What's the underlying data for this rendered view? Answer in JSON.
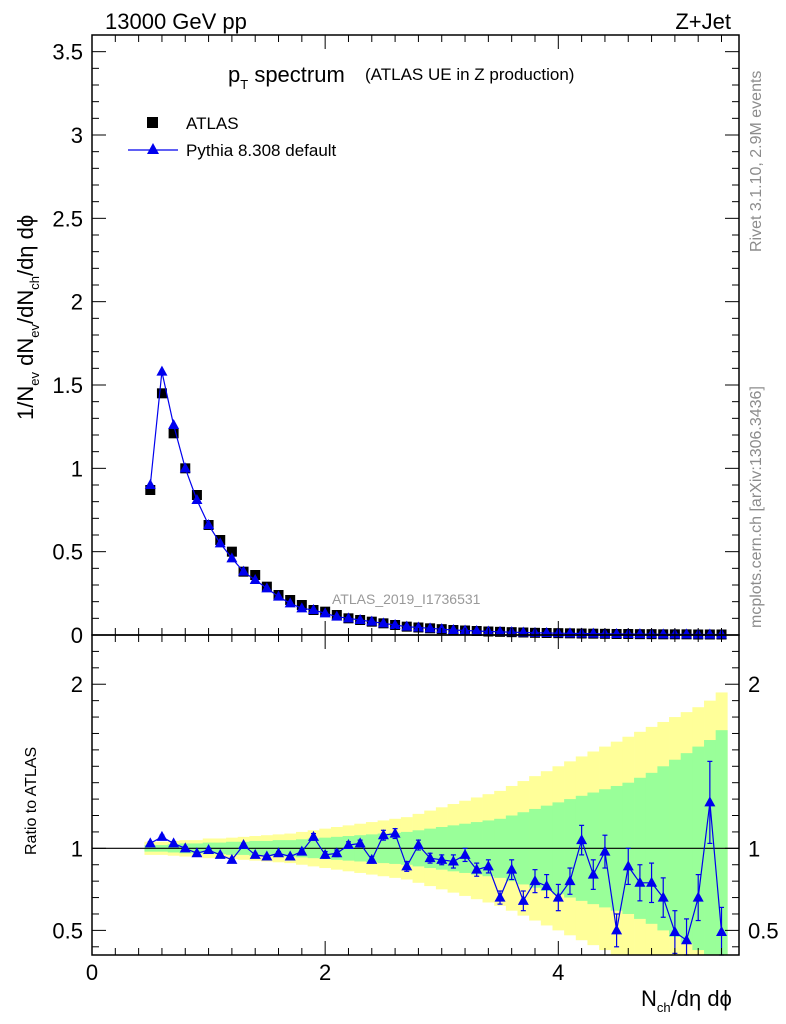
{
  "header": {
    "left": "13000 GeV pp",
    "right": "Z+Jet"
  },
  "title": {
    "main": "p",
    "sub": "T",
    "rest": " spectrum",
    "note": "(ATLAS UE in Z production)"
  },
  "analysis_id": "ATLAS_2019_I1736531",
  "side_labels": {
    "top": "Rivet 3.1.10,  2.9M events",
    "bottom": "mcplots.cern.ch [arXiv:1306.3436]"
  },
  "ylabel_main": {
    "a": "1/N",
    "a_sub": "ev",
    "b": " dN",
    "b_sub": "ev",
    "c": "/dN",
    "c_sub": "ch",
    "d": "/dη dϕ"
  },
  "ylabel_ratio": "Ratio to ATLAS",
  "xlabel": {
    "a": "N",
    "a_sub": "ch",
    "b": "/dη dϕ"
  },
  "legend": [
    {
      "name": "ATLAS",
      "marker": "square",
      "color": "#000000"
    },
    {
      "name": "Pythia 8.308 default",
      "marker": "triangle",
      "color": "#0000ee"
    }
  ],
  "colors": {
    "data": "#000000",
    "mc": "#0000ee",
    "band_inner": "#99ff99",
    "band_outer": "#ffff99"
  },
  "chart_data": {
    "type": "scatter",
    "xlim": [
      0,
      5.55
    ],
    "ylim_main": [
      0,
      3.6
    ],
    "ylim_ratio": [
      0.35,
      2.3
    ],
    "x_ticks": [
      "0",
      "2",
      "4"
    ],
    "y_ticks_main": [
      "0",
      "0.5",
      "1",
      "1.5",
      "2",
      "2.5",
      "3",
      "3.5"
    ],
    "y_ticks_ratio": [
      "0.5",
      "1",
      "2"
    ],
    "x": [
      0.5,
      0.6,
      0.7,
      0.8,
      0.9,
      1.0,
      1.1,
      1.2,
      1.3,
      1.4,
      1.5,
      1.6,
      1.7,
      1.8,
      1.9,
      2.0,
      2.1,
      2.2,
      2.3,
      2.4,
      2.5,
      2.6,
      2.7,
      2.8,
      2.9,
      3.0,
      3.1,
      3.2,
      3.3,
      3.4,
      3.5,
      3.6,
      3.7,
      3.8,
      3.9,
      4.0,
      4.1,
      4.2,
      4.3,
      4.4,
      4.5,
      4.6,
      4.7,
      4.8,
      4.9,
      5.0,
      5.1,
      5.2,
      5.3,
      5.4
    ],
    "series": [
      {
        "name": "ATLAS",
        "values": [
          0.87,
          1.45,
          1.21,
          1.0,
          0.84,
          0.66,
          0.57,
          0.5,
          0.38,
          0.36,
          0.29,
          0.24,
          0.21,
          0.18,
          0.15,
          0.14,
          0.12,
          0.1,
          0.09,
          0.08,
          0.07,
          0.06,
          0.05,
          0.045,
          0.04,
          0.035,
          0.03,
          0.027,
          0.024,
          0.021,
          0.019,
          0.017,
          0.015,
          0.013,
          0.012,
          0.011,
          0.01,
          0.009,
          0.008,
          0.007,
          0.006,
          0.006,
          0.005,
          0.005,
          0.004,
          0.004,
          0.004,
          0.003,
          0.003,
          0.003
        ]
      },
      {
        "name": "Pythia 8.308 default",
        "values": [
          0.9,
          1.58,
          1.26,
          1.0,
          0.81,
          0.66,
          0.55,
          0.46,
          0.38,
          0.33,
          0.28,
          0.23,
          0.19,
          0.16,
          0.15,
          0.13,
          0.11,
          0.1,
          0.09,
          0.08,
          0.07,
          0.06,
          0.05,
          0.045,
          0.04,
          0.035,
          0.03,
          0.027,
          0.024,
          0.021,
          0.019,
          0.017,
          0.015,
          0.013,
          0.012,
          0.011,
          0.01,
          0.009,
          0.008,
          0.007,
          0.006,
          0.006,
          0.005,
          0.005,
          0.004,
          0.004,
          0.004,
          0.003,
          0.003,
          0.003
        ]
      }
    ],
    "ratio": {
      "values": [
        1.03,
        1.07,
        1.03,
        1.0,
        0.97,
        0.99,
        0.96,
        0.93,
        1.02,
        0.96,
        0.95,
        0.97,
        0.95,
        0.98,
        1.07,
        0.96,
        0.97,
        1.02,
        1.03,
        0.93,
        1.08,
        1.09,
        0.89,
        1.02,
        0.94,
        0.93,
        0.92,
        0.96,
        0.87,
        0.89,
        0.7,
        0.87,
        0.68,
        0.8,
        0.77,
        0.7,
        0.8,
        1.05,
        0.84,
        0.98,
        0.5,
        0.89,
        0.79,
        0.79,
        0.7,
        0.49,
        0.44,
        0.7,
        1.28,
        0.49
      ],
      "errors": [
        0.01,
        0.01,
        0.01,
        0.01,
        0.01,
        0.01,
        0.01,
        0.01,
        0.01,
        0.01,
        0.01,
        0.01,
        0.01,
        0.01,
        0.02,
        0.02,
        0.02,
        0.02,
        0.02,
        0.02,
        0.03,
        0.03,
        0.03,
        0.03,
        0.03,
        0.03,
        0.04,
        0.04,
        0.04,
        0.04,
        0.04,
        0.06,
        0.06,
        0.07,
        0.07,
        0.08,
        0.08,
        0.09,
        0.09,
        0.1,
        0.1,
        0.11,
        0.11,
        0.12,
        0.12,
        0.13,
        0.13,
        0.14,
        0.25,
        0.15
      ],
      "band_inner": [
        0.02,
        0.02,
        0.025,
        0.03,
        0.03,
        0.035,
        0.035,
        0.04,
        0.04,
        0.045,
        0.045,
        0.05,
        0.05,
        0.055,
        0.06,
        0.065,
        0.07,
        0.075,
        0.08,
        0.085,
        0.09,
        0.095,
        0.1,
        0.11,
        0.12,
        0.13,
        0.14,
        0.15,
        0.16,
        0.17,
        0.18,
        0.2,
        0.22,
        0.24,
        0.26,
        0.28,
        0.3,
        0.32,
        0.34,
        0.36,
        0.38,
        0.4,
        0.43,
        0.46,
        0.5,
        0.54,
        0.58,
        0.62,
        0.66,
        0.72
      ],
      "band_outer": [
        0.04,
        0.04,
        0.045,
        0.05,
        0.05,
        0.06,
        0.06,
        0.065,
        0.07,
        0.075,
        0.08,
        0.085,
        0.09,
        0.1,
        0.11,
        0.12,
        0.13,
        0.14,
        0.15,
        0.16,
        0.17,
        0.18,
        0.19,
        0.21,
        0.23,
        0.25,
        0.27,
        0.29,
        0.31,
        0.33,
        0.35,
        0.38,
        0.41,
        0.44,
        0.47,
        0.5,
        0.53,
        0.56,
        0.59,
        0.62,
        0.65,
        0.68,
        0.71,
        0.74,
        0.77,
        0.8,
        0.83,
        0.86,
        0.9,
        0.95
      ]
    }
  }
}
